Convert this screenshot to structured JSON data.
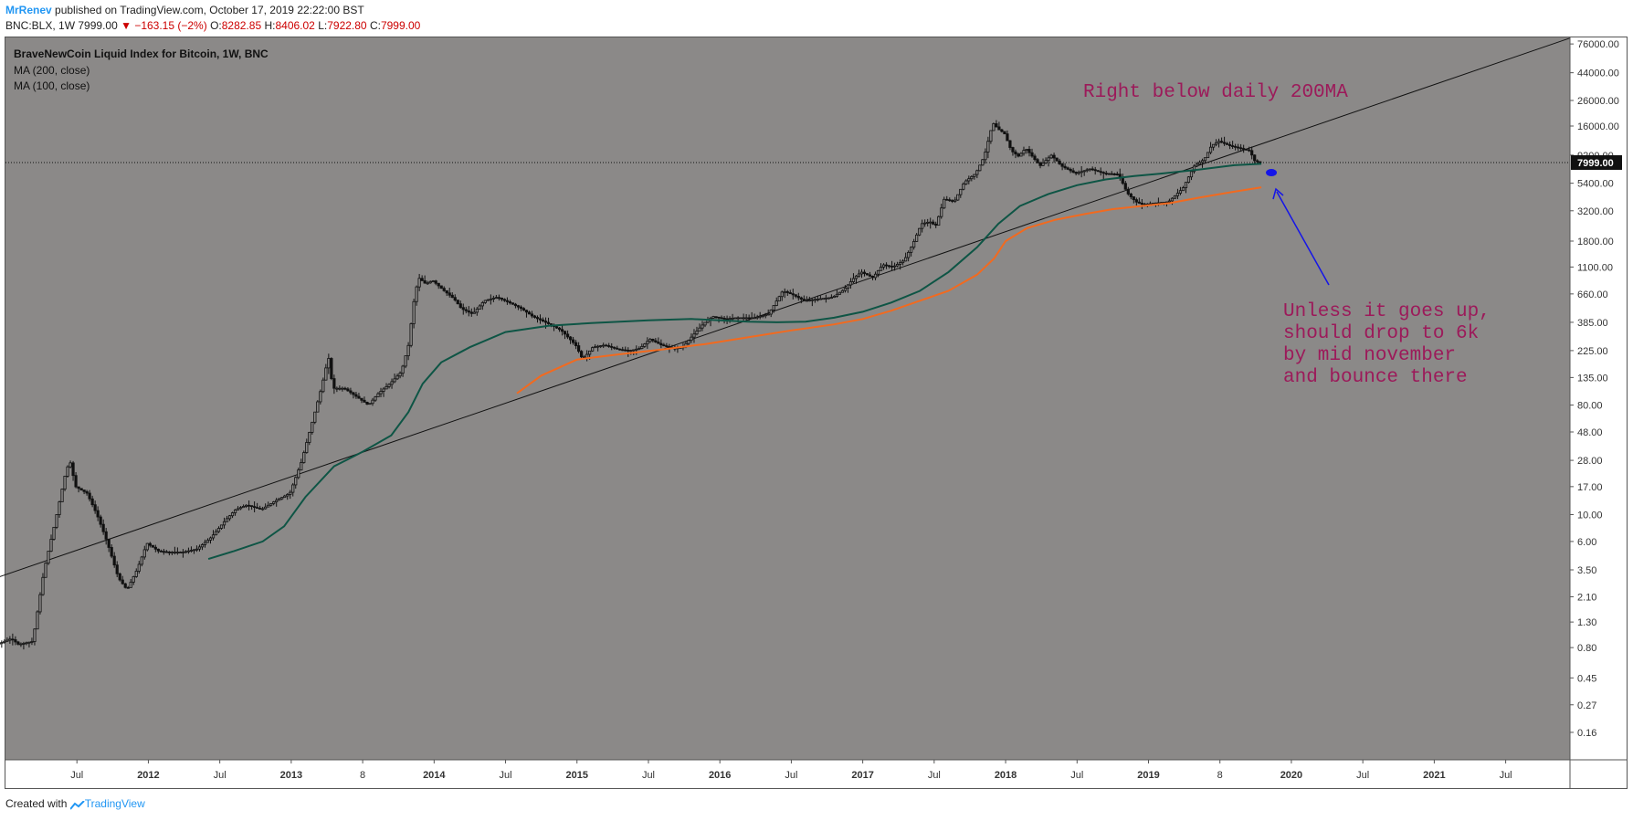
{
  "header": {
    "author": "MrRenev",
    "published": "published on TradingView.com, October 17, 2019 22:22:00 BST",
    "symbol_line": "BNC:BLX, 1W",
    "price": "7999.00",
    "change": "▼ −163.15 (−2%)",
    "o_label": "O:",
    "o_val": "8282.85",
    "h_label": "H:",
    "h_val": "8406.02",
    "l_label": "L:",
    "l_val": "7922.80",
    "c_label": "C:",
    "c_val": "7999.00"
  },
  "legend": {
    "title": "BraveNewCoin Liquid Index for Bitcoin, 1W, BNC",
    "ma200": "MA (200, close)",
    "ma100": "MA (100, close)"
  },
  "price_tag": "7999.00",
  "annotations": {
    "top_note": "Right below daily 200MA",
    "note_lines": [
      "Unless it goes up,",
      "should drop to 6k",
      "by mid november",
      "and bounce there"
    ]
  },
  "footer": {
    "created_with": "Created with",
    "brand": "TradingView"
  },
  "colors": {
    "plot_bg": "#8b8988",
    "candle": "#111111",
    "ma200": "#0e5545",
    "ma100": "#f26a1f",
    "annotation": "#9c1a5a",
    "arrow": "#1515e8",
    "trendline": "#111111"
  },
  "chart_data": {
    "type": "candlestick",
    "scale": "log",
    "y_ticks": [
      "76000.00",
      "44000.00",
      "26000.00",
      "16000.00",
      "9200.00",
      "5400.00",
      "3200.00",
      "1800.00",
      "1100.00",
      "660.00",
      "385.00",
      "225.00",
      "135.00",
      "80.00",
      "48.00",
      "28.00",
      "17.00",
      "10.00",
      "6.00",
      "3.50",
      "2.10",
      "1.30",
      "0.80",
      "0.45",
      "0.27",
      "0.16"
    ],
    "x_ticks": [
      "Jul",
      "2012",
      "Jul",
      "2013",
      "8",
      "2014",
      "Jul",
      "2015",
      "Jul",
      "2016",
      "Jul",
      "2017",
      "Jul",
      "2018",
      "Jul",
      "2019",
      "8",
      "2020",
      "Jul",
      "2021",
      "Jul"
    ],
    "x_tick_dates": [
      2011.5,
      2012.0,
      2012.5,
      2013.0,
      2013.5,
      2014.0,
      2014.5,
      2015.0,
      2015.5,
      2016.0,
      2016.5,
      2017.0,
      2017.5,
      2018.0,
      2018.5,
      2019.0,
      2019.5,
      2020.0,
      2020.5,
      2021.0,
      2021.5
    ],
    "x_range": [
      2011.0,
      2021.95
    ],
    "y_range": [
      0.095,
      86000
    ],
    "price_path": [
      [
        2010.56,
        0.07
      ],
      [
        2010.6,
        0.2
      ],
      [
        2010.7,
        0.28
      ],
      [
        2010.8,
        0.5
      ],
      [
        2010.88,
        1.0
      ],
      [
        2010.95,
        0.85
      ],
      [
        2011.05,
        0.95
      ],
      [
        2011.1,
        0.85
      ],
      [
        2011.2,
        0.9
      ],
      [
        2011.28,
        3.5
      ],
      [
        2011.35,
        8
      ],
      [
        2011.4,
        15
      ],
      [
        2011.43,
        22
      ],
      [
        2011.46,
        28
      ],
      [
        2011.5,
        17
      ],
      [
        2011.58,
        15
      ],
      [
        2011.65,
        10
      ],
      [
        2011.72,
        6
      ],
      [
        2011.8,
        3
      ],
      [
        2011.86,
        2.4
      ],
      [
        2011.93,
        3.5
      ],
      [
        2012.0,
        5.8
      ],
      [
        2012.08,
        5
      ],
      [
        2012.15,
        4.9
      ],
      [
        2012.25,
        4.9
      ],
      [
        2012.35,
        5.2
      ],
      [
        2012.45,
        6.5
      ],
      [
        2012.55,
        9
      ],
      [
        2012.62,
        11
      ],
      [
        2012.7,
        12
      ],
      [
        2012.8,
        11
      ],
      [
        2012.9,
        13
      ],
      [
        2013.0,
        15
      ],
      [
        2013.08,
        27
      ],
      [
        2013.16,
        60
      ],
      [
        2013.22,
        110
      ],
      [
        2013.27,
        200
      ],
      [
        2013.3,
        110
      ],
      [
        2013.38,
        110
      ],
      [
        2013.46,
        95
      ],
      [
        2013.55,
        80
      ],
      [
        2013.62,
        100
      ],
      [
        2013.7,
        120
      ],
      [
        2013.78,
        150
      ],
      [
        2013.83,
        250
      ],
      [
        2013.87,
        600
      ],
      [
        2013.9,
        900
      ],
      [
        2013.95,
        800
      ],
      [
        2014.0,
        850
      ],
      [
        2014.08,
        700
      ],
      [
        2014.15,
        600
      ],
      [
        2014.2,
        500
      ],
      [
        2014.28,
        450
      ],
      [
        2014.36,
        580
      ],
      [
        2014.45,
        620
      ],
      [
        2014.55,
        550
      ],
      [
        2014.62,
        500
      ],
      [
        2014.7,
        430
      ],
      [
        2014.8,
        380
      ],
      [
        2014.9,
        330
      ],
      [
        2015.0,
        250
      ],
      [
        2015.05,
        190
      ],
      [
        2015.12,
        240
      ],
      [
        2015.2,
        250
      ],
      [
        2015.3,
        230
      ],
      [
        2015.38,
        225
      ],
      [
        2015.45,
        235
      ],
      [
        2015.52,
        280
      ],
      [
        2015.6,
        250
      ],
      [
        2015.68,
        235
      ],
      [
        2015.75,
        240
      ],
      [
        2015.82,
        300
      ],
      [
        2015.9,
        380
      ],
      [
        2015.96,
        430
      ],
      [
        2016.05,
        410
      ],
      [
        2016.12,
        420
      ],
      [
        2016.25,
        420
      ],
      [
        2016.35,
        450
      ],
      [
        2016.45,
        700
      ],
      [
        2016.52,
        650
      ],
      [
        2016.6,
        580
      ],
      [
        2016.7,
        600
      ],
      [
        2016.8,
        620
      ],
      [
        2016.88,
        720
      ],
      [
        2016.95,
        900
      ],
      [
        2017.0,
        1000
      ],
      [
        2017.08,
        900
      ],
      [
        2017.15,
        1150
      ],
      [
        2017.22,
        1100
      ],
      [
        2017.3,
        1250
      ],
      [
        2017.36,
        1700
      ],
      [
        2017.42,
        2500
      ],
      [
        2017.48,
        2600
      ],
      [
        2017.52,
        2400
      ],
      [
        2017.58,
        4000
      ],
      [
        2017.65,
        3800
      ],
      [
        2017.72,
        5500
      ],
      [
        2017.8,
        6500
      ],
      [
        2017.86,
        9000
      ],
      [
        2017.92,
        17000
      ],
      [
        2017.96,
        15000
      ],
      [
        2018.0,
        14000
      ],
      [
        2018.05,
        10000
      ],
      [
        2018.1,
        9000
      ],
      [
        2018.15,
        10500
      ],
      [
        2018.25,
        7500
      ],
      [
        2018.33,
        9200
      ],
      [
        2018.4,
        7500
      ],
      [
        2018.5,
        6500
      ],
      [
        2018.6,
        7100
      ],
      [
        2018.7,
        6500
      ],
      [
        2018.8,
        6400
      ],
      [
        2018.86,
        4500
      ],
      [
        2018.92,
        3800
      ],
      [
        2018.97,
        3600
      ],
      [
        2019.05,
        3700
      ],
      [
        2019.15,
        3800
      ],
      [
        2019.25,
        4900
      ],
      [
        2019.33,
        7500
      ],
      [
        2019.4,
        8500
      ],
      [
        2019.45,
        11000
      ],
      [
        2019.5,
        12000
      ],
      [
        2019.58,
        11000
      ],
      [
        2019.65,
        10500
      ],
      [
        2019.72,
        10000
      ],
      [
        2019.75,
        8300
      ],
      [
        2019.79,
        7999
      ]
    ],
    "ma200_path": [
      [
        2012.42,
        4.3
      ],
      [
        2012.6,
        5.0
      ],
      [
        2012.8,
        6.0
      ],
      [
        2012.95,
        8
      ],
      [
        2013.1,
        14
      ],
      [
        2013.3,
        25
      ],
      [
        2013.5,
        33
      ],
      [
        2013.7,
        45
      ],
      [
        2013.82,
        70
      ],
      [
        2013.92,
        120
      ],
      [
        2014.05,
        180
      ],
      [
        2014.25,
        240
      ],
      [
        2014.5,
        320
      ],
      [
        2014.8,
        360
      ],
      [
        2015.1,
        380
      ],
      [
        2015.5,
        400
      ],
      [
        2015.8,
        410
      ],
      [
        2016.0,
        400
      ],
      [
        2016.2,
        390
      ],
      [
        2016.4,
        385
      ],
      [
        2016.6,
        390
      ],
      [
        2016.8,
        420
      ],
      [
        2017.0,
        470
      ],
      [
        2017.2,
        560
      ],
      [
        2017.4,
        700
      ],
      [
        2017.6,
        1000
      ],
      [
        2017.8,
        1600
      ],
      [
        2017.95,
        2500
      ],
      [
        2018.1,
        3500
      ],
      [
        2018.3,
        4400
      ],
      [
        2018.5,
        5200
      ],
      [
        2018.7,
        5800
      ],
      [
        2018.9,
        6200
      ],
      [
        2019.1,
        6500
      ],
      [
        2019.35,
        7000
      ],
      [
        2019.6,
        7600
      ],
      [
        2019.79,
        7800
      ]
    ],
    "ma100_path": [
      [
        2014.58,
        100
      ],
      [
        2014.75,
        140
      ],
      [
        2015.0,
        190
      ],
      [
        2015.3,
        210
      ],
      [
        2015.6,
        230
      ],
      [
        2015.9,
        255
      ],
      [
        2016.2,
        290
      ],
      [
        2016.5,
        330
      ],
      [
        2016.8,
        370
      ],
      [
        2017.0,
        410
      ],
      [
        2017.2,
        480
      ],
      [
        2017.4,
        580
      ],
      [
        2017.6,
        700
      ],
      [
        2017.8,
        950
      ],
      [
        2017.92,
        1300
      ],
      [
        2018.0,
        1800
      ],
      [
        2018.15,
        2300
      ],
      [
        2018.35,
        2700
      ],
      [
        2018.55,
        3000
      ],
      [
        2018.75,
        3300
      ],
      [
        2018.95,
        3500
      ],
      [
        2019.15,
        3700
      ],
      [
        2019.35,
        4100
      ],
      [
        2019.6,
        4600
      ],
      [
        2019.79,
        5000
      ]
    ],
    "trendline": [
      [
        2010.55,
        2.1
      ],
      [
        2021.95,
        85000
      ]
    ],
    "target_point": [
      2019.86,
      6600
    ]
  }
}
